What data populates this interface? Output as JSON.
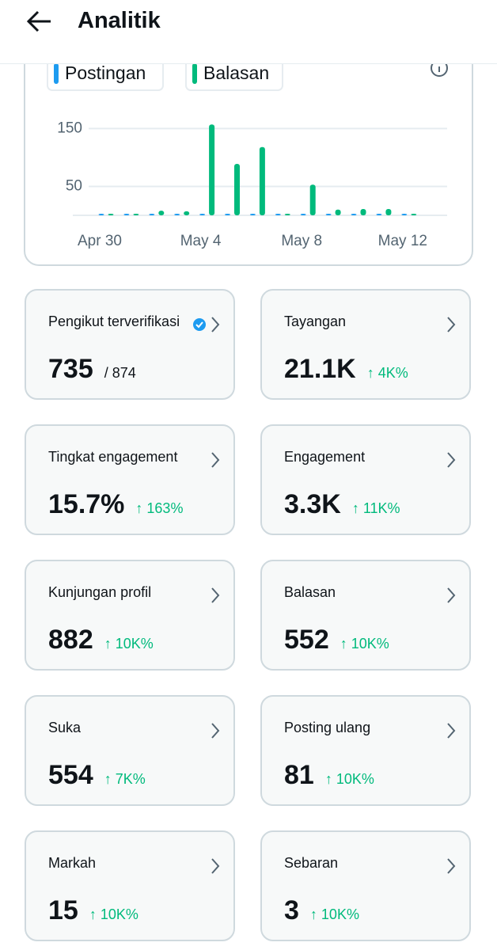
{
  "header": {
    "title": "Analitik"
  },
  "chart_data": {
    "type": "bar",
    "categories": [
      "Apr 30",
      null,
      null,
      null,
      "May 4",
      null,
      null,
      null,
      "May 8",
      null,
      null,
      null,
      "May 12"
    ],
    "series": [
      {
        "name": "Postingan",
        "color": "#1d9bf0",
        "values": [
          0,
          1,
          2,
          2,
          2,
          1,
          2,
          1,
          2,
          1,
          0,
          1,
          0
        ]
      },
      {
        "name": "Balasan",
        "color": "#00ba7c",
        "values": [
          0,
          1,
          8,
          7,
          157,
          89,
          118,
          1,
          53,
          10,
          11,
          11,
          0
        ]
      }
    ],
    "ylim": [
      0,
      167
    ],
    "yticks": [
      50,
      150
    ],
    "grid": true
  },
  "cards": [
    {
      "label": "Pengikut terverifikasi",
      "value": "735",
      "extra": "/ 874"
    },
    {
      "label": "Tayangan",
      "value": "21.1K",
      "change": "↑ 4K%"
    },
    {
      "label": "Tingkat engagement",
      "value": "15.7%",
      "change": "↑ 163%"
    },
    {
      "label": "Engagement",
      "value": "3.3K",
      "change": "↑ 11K%"
    },
    {
      "label": "Kunjungan profil",
      "value": "882",
      "change": "↑ 10K%"
    },
    {
      "label": "Balasan",
      "value": "552",
      "change": "↑ 10K%"
    },
    {
      "label": "Suka",
      "value": "554",
      "change": "↑ 7K%"
    },
    {
      "label": "Posting ulang",
      "value": "81",
      "change": "↑ 10K%"
    },
    {
      "label": "Markah",
      "value": "15",
      "change": "↑ 10K%"
    },
    {
      "label": "Sebaran",
      "value": "3",
      "change": "↑ 10K%"
    }
  ]
}
